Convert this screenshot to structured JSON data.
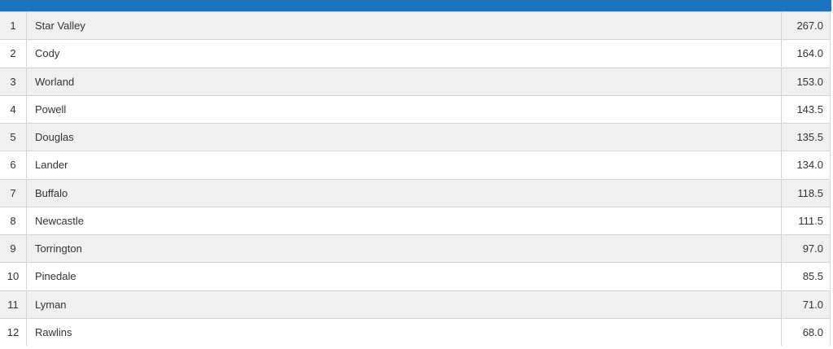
{
  "table": {
    "rows": [
      [
        1,
        "Star Valley",
        "267.0"
      ],
      [
        2,
        "Cody",
        "164.0"
      ],
      [
        3,
        "Worland",
        "153.0"
      ],
      [
        4,
        "Powell",
        "143.5"
      ],
      [
        5,
        "Douglas",
        "135.5"
      ],
      [
        6,
        "Lander",
        "134.0"
      ],
      [
        7,
        "Buffalo",
        "118.5"
      ],
      [
        8,
        "Newcastle",
        "111.5"
      ],
      [
        9,
        "Torrington",
        "97.0"
      ],
      [
        10,
        "Pinedale",
        "85.5"
      ],
      [
        11,
        "Lyman",
        "71.0"
      ],
      [
        12,
        "Rawlins",
        "68.0"
      ]
    ]
  }
}
